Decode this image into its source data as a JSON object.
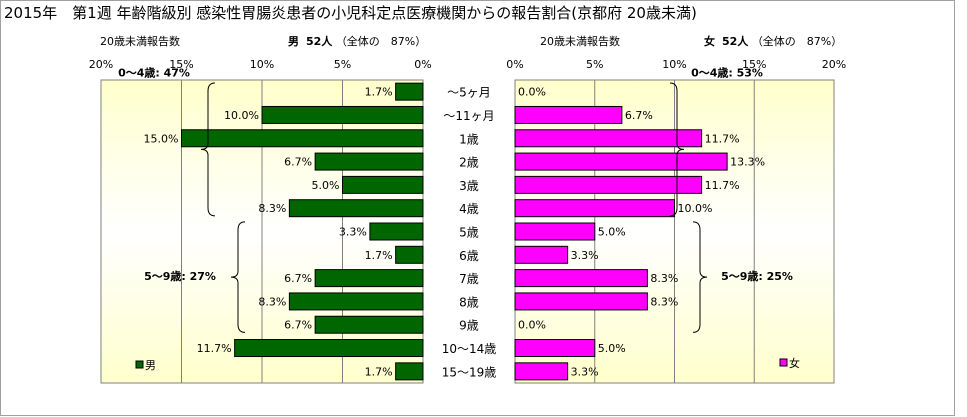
{
  "title": "2015年　第1週 年齢階級別 感染性胃腸炎患者の小児科定点医療機関からの報告割合(京都府 20歳未満)",
  "male_header": {
    "report_count_label": "20歳未満報告数",
    "sex_label": "男",
    "count_text": "52人",
    "share_text": "（全体の　87%）"
  },
  "female_header": {
    "report_count_label": "20歳未満報告数",
    "sex_label": "女",
    "count_text": "52人",
    "share_text": "（全体の　87%）"
  },
  "colors": {
    "male_bar": "#006600",
    "female_bar": "#ff00ff",
    "plot_bg_edge": "#ffffcc",
    "plot_bg_center": "#ffffff"
  },
  "chart_data": [
    {
      "type": "bar",
      "orientation": "horizontal",
      "direction": "right-to-left",
      "xlim": [
        0,
        20
      ],
      "x_ticks": [
        "20%",
        "15%",
        "10%",
        "5%",
        "0%"
      ],
      "categories": [
        "～5ヶ月",
        "～11ヶ月",
        "1歳",
        "2歳",
        "3歳",
        "4歳",
        "5歳",
        "6歳",
        "7歳",
        "8歳",
        "9歳",
        "10～14歳",
        "15～19歳"
      ],
      "series": [
        {
          "name": "男",
          "values": [
            1.7,
            10.0,
            15.0,
            6.7,
            5.0,
            8.3,
            3.3,
            1.7,
            6.7,
            8.3,
            6.7,
            11.7,
            1.7
          ],
          "labels": [
            "1.7%",
            "10.0%",
            "15.0%",
            "6.7%",
            "5.0%",
            "8.3%",
            "3.3%",
            "1.7%",
            "6.7%",
            "8.3%",
            "6.7%",
            "11.7%",
            "1.7%"
          ]
        }
      ],
      "annotations": [
        "0～4歳: 47%",
        "5～9歳: 27%"
      ],
      "legend": "bottom-left",
      "grid": true
    },
    {
      "type": "bar",
      "orientation": "horizontal",
      "direction": "left-to-right",
      "xlim": [
        0,
        20
      ],
      "x_ticks": [
        "0%",
        "5%",
        "10%",
        "15%",
        "20%"
      ],
      "categories": [
        "～5ヶ月",
        "～11ヶ月",
        "1歳",
        "2歳",
        "3歳",
        "4歳",
        "5歳",
        "6歳",
        "7歳",
        "8歳",
        "9歳",
        "10～14歳",
        "15～19歳"
      ],
      "series": [
        {
          "name": "女",
          "values": [
            0.0,
            6.7,
            11.7,
            13.3,
            11.7,
            10.0,
            5.0,
            3.3,
            8.3,
            8.3,
            0.0,
            5.0,
            3.3
          ],
          "labels": [
            "0.0%",
            "6.7%",
            "11.7%",
            "13.3%",
            "11.7%",
            "10.0%",
            "5.0%",
            "3.3%",
            "8.3%",
            "8.3%",
            "0.0%",
            "5.0%",
            "3.3%"
          ]
        }
      ],
      "annotations": [
        "0～4歳: 53%",
        "5～9歳: 25%"
      ],
      "legend": "bottom-right",
      "grid": true
    }
  ]
}
